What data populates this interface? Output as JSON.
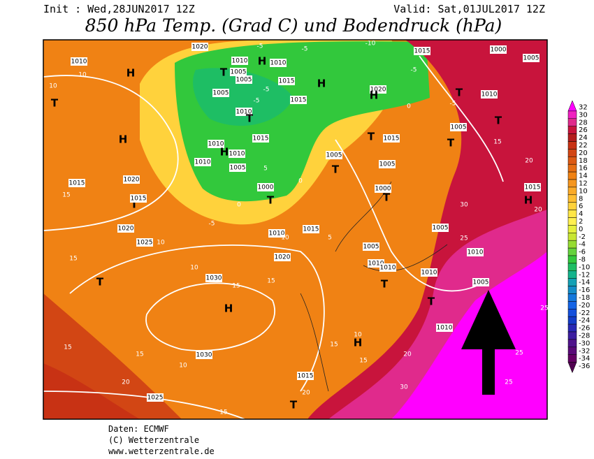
{
  "header": {
    "init": "Init : Wed,28JUN2017 12Z",
    "valid": "Valid: Sat,01JUL2017 12Z",
    "title": "850 hPa Temp. (Grad C) und Bodendruck (hPa)"
  },
  "footer": {
    "source": "Daten: ECMWF",
    "copyright": "(C) Wetterzentrale",
    "url": "www.wetterzentrale.de"
  },
  "legend": {
    "values": [
      32,
      30,
      28,
      26,
      24,
      22,
      20,
      18,
      16,
      14,
      12,
      10,
      8,
      6,
      4,
      2,
      0,
      -2,
      -4,
      -6,
      -8,
      -10,
      -12,
      -14,
      -16,
      -18,
      -20,
      -22,
      -24,
      -26,
      -28,
      -30,
      -32,
      -34,
      -36
    ],
    "colors": [
      "#ff00ff",
      "#f020c0",
      "#e02a8c",
      "#c8143c",
      "#b41e1e",
      "#c83214",
      "#d24614",
      "#dc5a14",
      "#e66e14",
      "#f08214",
      "#f5961e",
      "#faaa28",
      "#ffbe32",
      "#ffd23c",
      "#ffe646",
      "#fff050",
      "#e6f03c",
      "#c8e632",
      "#96dc32",
      "#64d23c",
      "#32c83c",
      "#1ebe64",
      "#14b48c",
      "#14a0b4",
      "#148cc8",
      "#1478dc",
      "#1464e6",
      "#1450dc",
      "#143cc8",
      "#2828b4",
      "#3c1ea0",
      "#50148c",
      "#5a0a78",
      "#640064",
      "#500050"
    ]
  },
  "map_labels": [
    "1020",
    "1010",
    "10",
    "H",
    "10",
    "T",
    "H",
    "1020",
    "1015",
    "15",
    "T",
    "1015",
    "1020",
    "1025",
    "10",
    "15",
    "T",
    "10",
    "1030",
    "15",
    "H",
    "15",
    "1030",
    "10",
    "15",
    "15",
    "20",
    "1025",
    "15",
    "1020",
    "1010",
    "10",
    "1015",
    "5",
    "T",
    "1005",
    "1005",
    "1010",
    "1010",
    "T",
    "1010",
    "1005",
    "T",
    "1010",
    "15",
    "H",
    "10",
    "15",
    "20",
    "1015",
    "20",
    "T",
    "30",
    "25",
    "25",
    "25",
    "1005",
    "25",
    "1010",
    "30",
    "1015",
    "H",
    "20",
    "20",
    "15",
    "T",
    "1005",
    "T",
    "1010",
    "T",
    "1000",
    "1005",
    "1015",
    "-5",
    "1020",
    "H",
    "0",
    "-5",
    "1015",
    "1005",
    "1000",
    "T",
    "1010",
    "1005",
    "T",
    "1005",
    "1010",
    "H",
    "-5",
    "1015",
    "-5",
    "H",
    "1015",
    "-5",
    "1005",
    "1010",
    "T",
    "1015",
    "1010",
    "H",
    "1010",
    "1010",
    "1005",
    "1000",
    "T",
    "0",
    "-5",
    "5",
    "0",
    "T",
    "-5",
    "-10"
  ]
}
